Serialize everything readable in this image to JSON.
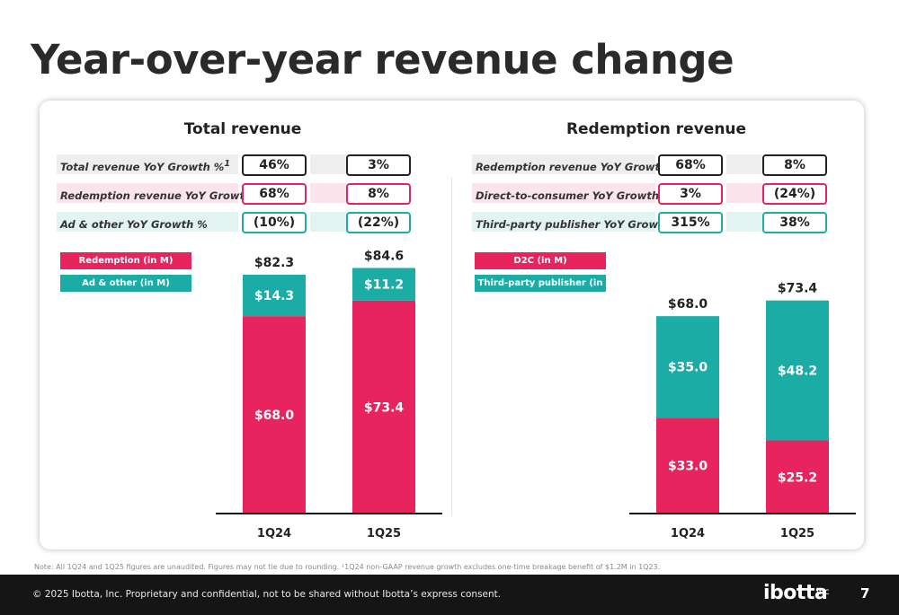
{
  "page": {
    "title": "Year-over-year revenue change",
    "note": "Note: All 1Q24 and 1Q25 figures are unaudited. Figures may not tie due to rounding. ¹1Q24 non-GAAP revenue growth excludes one-time breakage benefit of $1.2M in 1Q23.",
    "copyright": "© 2025 Ibotta, Inc. Proprietary and confidential, not to be shared without Ibotta’s express consent.",
    "logo_text": "ibotta",
    "logo_suffix": "inc",
    "page_number": "7"
  },
  "colors": {
    "pink": "#E8245E",
    "teal": "#1BADA5",
    "total_row_bg": "#EEEEEE",
    "redemption_row_bg": "#FCE4EC",
    "ad_row_bg": "#E3F3F2",
    "total_box_border": "#222222"
  },
  "left": {
    "title": "Total revenue",
    "metrics": [
      {
        "label": "Total revenue YoY Growth %",
        "sup": "1",
        "v1": "46%",
        "v2": "3%",
        "color_key": "total"
      },
      {
        "label": "Redemption revenue YoY Growth %",
        "sup": "1",
        "v1": "68%",
        "v2": "8%",
        "color_key": "pink"
      },
      {
        "label": "Ad & other YoY Growth %",
        "sup": "",
        "v1": "(10%)",
        "v2": "(22%)",
        "color_key": "teal"
      }
    ],
    "legend": [
      "Redemption (in M)",
      "Ad & other (in M)"
    ]
  },
  "right": {
    "title": "Redemption revenue",
    "metrics": [
      {
        "label": "Redemption revenue YoY Growth %",
        "sup": "1",
        "v1": "68%",
        "v2": "8%",
        "color_key": "total"
      },
      {
        "label": "Direct-to-consumer YoY Growth %",
        "sup": "1",
        "v1": "3%",
        "v2": "(24%)",
        "color_key": "pink"
      },
      {
        "label": "Third-party publisher YoY Growth %",
        "sup": "",
        "v1": "315%",
        "v2": "38%",
        "color_key": "teal"
      }
    ],
    "legend": [
      "D2C (in M)",
      "Third-party publisher (in M)"
    ]
  },
  "chart_data": [
    {
      "type": "bar",
      "stacked": true,
      "title": "Total revenue",
      "categories": [
        "1Q24",
        "1Q25"
      ],
      "series": [
        {
          "name": "Redemption (in M)",
          "values": [
            68.0,
            73.4
          ],
          "labels": [
            "$68.0",
            "$73.4"
          ],
          "color": "#E8245E"
        },
        {
          "name": "Ad & other (in M)",
          "values": [
            14.3,
            11.2
          ],
          "labels": [
            "$14.3",
            "$11.2"
          ],
          "color": "#1BADA5"
        }
      ],
      "totals": [
        82.3,
        84.6
      ],
      "total_labels": [
        "$82.3",
        "$84.6"
      ],
      "ylim": [
        0,
        90
      ]
    },
    {
      "type": "bar",
      "stacked": true,
      "title": "Redemption revenue",
      "categories": [
        "1Q24",
        "1Q25"
      ],
      "series": [
        {
          "name": "D2C (in M)",
          "values": [
            33.0,
            25.2
          ],
          "labels": [
            "$33.0",
            "$25.2"
          ],
          "color": "#E8245E"
        },
        {
          "name": "Third-party publisher (in M)",
          "values": [
            35.0,
            48.2
          ],
          "labels": [
            "$35.0",
            "$48.2"
          ],
          "color": "#1BADA5"
        }
      ],
      "totals": [
        68.0,
        73.4
      ],
      "total_labels": [
        "$68.0",
        "$73.4"
      ],
      "ylim": [
        0,
        90
      ]
    }
  ]
}
